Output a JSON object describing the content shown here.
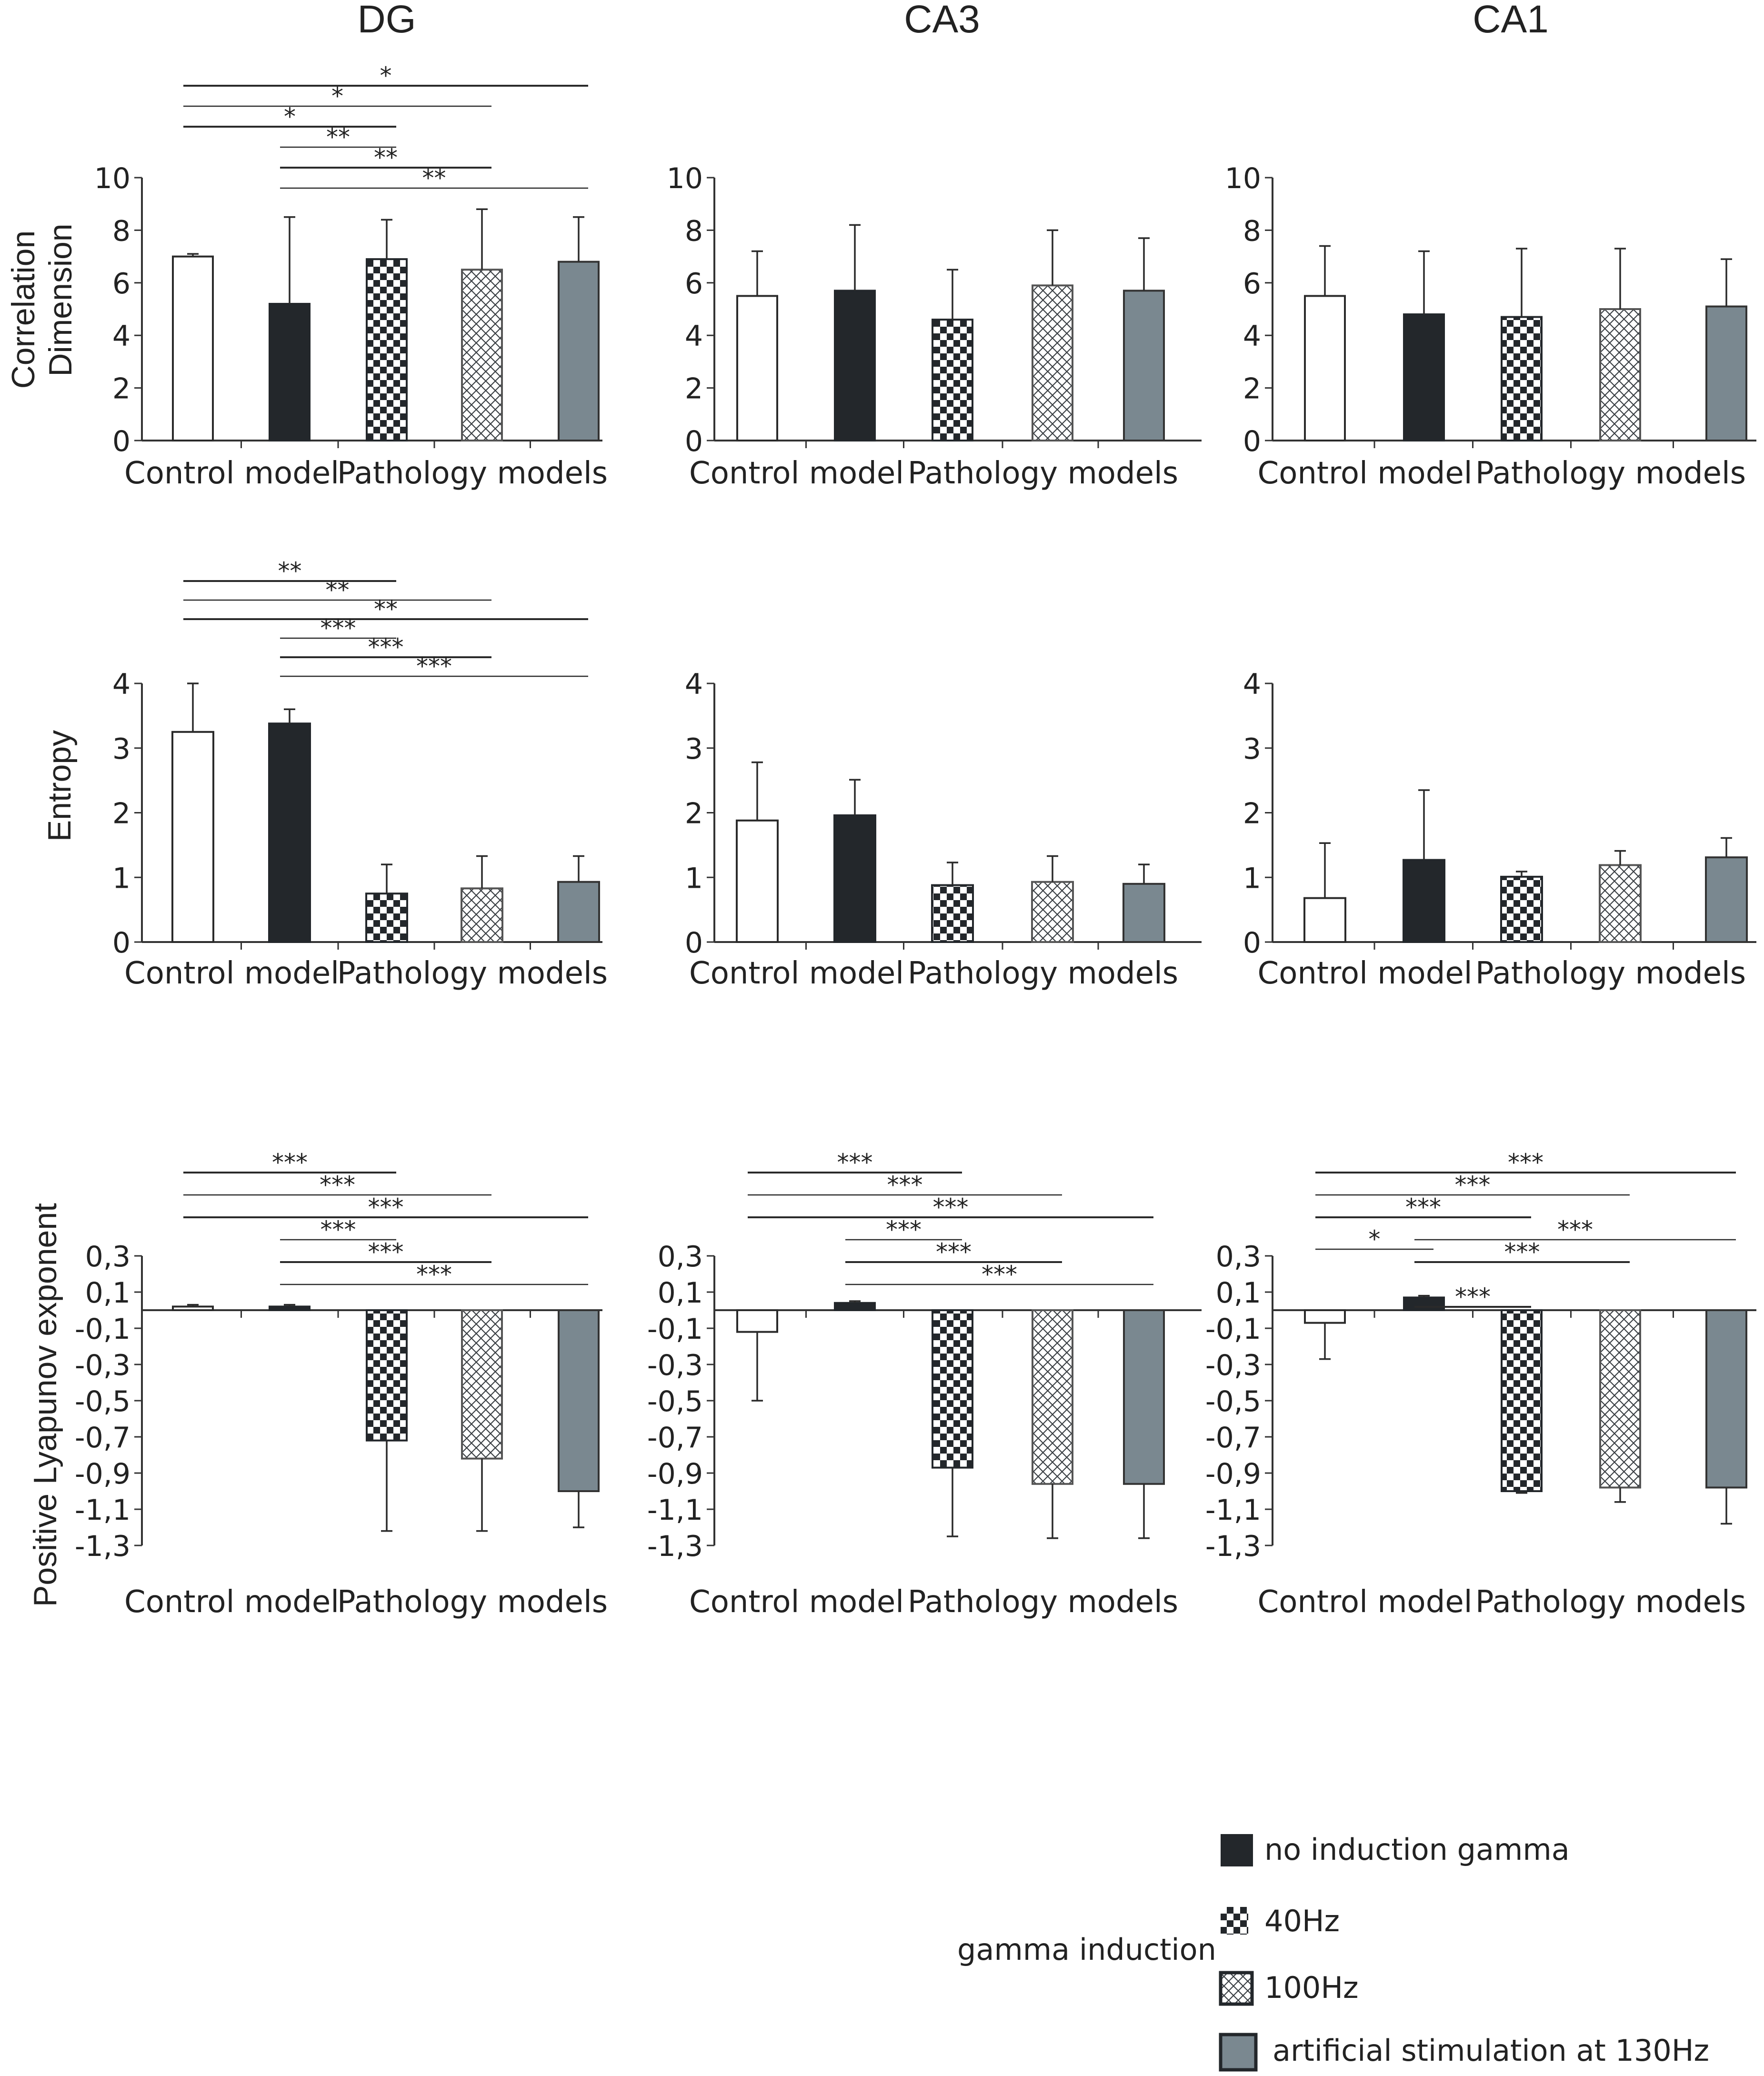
{
  "columns": [
    "DG",
    "CA3",
    "CA1"
  ],
  "group_labels": {
    "control": "Control model",
    "pathology": "Pathology models"
  },
  "row_labels": {
    "cd": [
      "Correlation",
      "Dimension"
    ],
    "ent": [
      "Entropy"
    ],
    "ly": [
      "Positive Lyapunov exponent"
    ]
  },
  "legend": {
    "group_label": "gamma induction",
    "items": [
      {
        "label": "no induction gamma",
        "pattern": "solid-dark"
      },
      {
        "label": "40Hz",
        "pattern": "checker"
      },
      {
        "label": "100Hz",
        "pattern": "crosshatch"
      },
      {
        "label": "artificial stimulation at 130Hz",
        "pattern": "solid-gray"
      }
    ]
  },
  "colors": {
    "dark": "#23272b",
    "gray": "#7a8890",
    "white": "#ffffff",
    "axis": "#333333"
  },
  "chart_data": [
    {
      "type": "bar",
      "title": "DG",
      "ylabel": "Correlation Dimension",
      "ylim": [
        0,
        10
      ],
      "yticks": [
        "0",
        "2",
        "4",
        "6",
        "8",
        "10"
      ],
      "categories": [
        "control",
        "no induction gamma",
        "40Hz",
        "100Hz",
        "artificial stimulation at 130Hz"
      ],
      "values": [
        7.0,
        5.2,
        6.9,
        6.5,
        6.8
      ],
      "errors": [
        0.1,
        3.3,
        1.5,
        2.3,
        1.7
      ],
      "significance": [
        {
          "from": 0,
          "to": 4,
          "label": "*"
        },
        {
          "from": 0,
          "to": 3,
          "label": "*"
        },
        {
          "from": 0,
          "to": 2,
          "label": "*"
        },
        {
          "from": 1,
          "to": 2,
          "label": "**"
        },
        {
          "from": 1,
          "to": 3,
          "label": "**"
        },
        {
          "from": 1,
          "to": 4,
          "label": "**"
        }
      ]
    },
    {
      "type": "bar",
      "title": "CA3",
      "ylabel": "Correlation Dimension",
      "ylim": [
        0,
        10
      ],
      "yticks": [
        "0",
        "2",
        "4",
        "6",
        "8",
        "10"
      ],
      "categories": [
        "control",
        "no induction gamma",
        "40Hz",
        "100Hz",
        "artificial stimulation at 130Hz"
      ],
      "values": [
        5.5,
        5.7,
        4.6,
        5.9,
        5.7
      ],
      "errors": [
        1.7,
        2.5,
        1.9,
        2.1,
        2.0
      ],
      "significance": []
    },
    {
      "type": "bar",
      "title": "CA1",
      "ylabel": "Correlation Dimension",
      "ylim": [
        0,
        10
      ],
      "yticks": [
        "0",
        "2",
        "4",
        "6",
        "8",
        "10"
      ],
      "categories": [
        "control",
        "no induction gamma",
        "40Hz",
        "100Hz",
        "artificial stimulation at 130Hz"
      ],
      "values": [
        5.5,
        4.8,
        4.7,
        5.0,
        5.1
      ],
      "errors": [
        1.9,
        2.4,
        2.6,
        2.3,
        1.8
      ],
      "significance": []
    },
    {
      "type": "bar",
      "title": "DG",
      "ylabel": "Entropy",
      "ylim": [
        0,
        4
      ],
      "yticks": [
        "0",
        "1",
        "2",
        "3",
        "4"
      ],
      "categories": [
        "control",
        "no induction gamma",
        "40Hz",
        "100Hz",
        "artificial stimulation at 130Hz"
      ],
      "values": [
        3.25,
        3.38,
        0.75,
        0.83,
        0.93
      ],
      "errors": [
        0.75,
        0.22,
        0.45,
        0.5,
        0.4
      ],
      "significance": [
        {
          "from": 0,
          "to": 2,
          "label": "**"
        },
        {
          "from": 0,
          "to": 3,
          "label": "**"
        },
        {
          "from": 0,
          "to": 4,
          "label": "**"
        },
        {
          "from": 1,
          "to": 2,
          "label": "***"
        },
        {
          "from": 1,
          "to": 3,
          "label": "***"
        },
        {
          "from": 1,
          "to": 4,
          "label": "***"
        }
      ]
    },
    {
      "type": "bar",
      "title": "CA3",
      "ylabel": "Entropy",
      "ylim": [
        0,
        4
      ],
      "yticks": [
        "0",
        "1",
        "2",
        "3",
        "4"
      ],
      "categories": [
        "control",
        "no induction gamma",
        "40Hz",
        "100Hz",
        "artificial stimulation at 130Hz"
      ],
      "values": [
        1.88,
        1.96,
        0.88,
        0.93,
        0.9
      ],
      "errors": [
        0.9,
        0.55,
        0.35,
        0.4,
        0.3
      ],
      "significance": []
    },
    {
      "type": "bar",
      "title": "CA1",
      "ylabel": "Entropy",
      "ylim": [
        0,
        4
      ],
      "yticks": [
        "0",
        "1",
        "2",
        "3",
        "4"
      ],
      "categories": [
        "control",
        "no induction gamma",
        "40Hz",
        "100Hz",
        "artificial stimulation at 130Hz"
      ],
      "values": [
        0.68,
        1.27,
        1.01,
        1.19,
        1.31
      ],
      "errors": [
        0.85,
        1.08,
        0.08,
        0.22,
        0.3
      ],
      "significance": []
    },
    {
      "type": "bar",
      "title": "DG",
      "ylabel": "Positive Lyapunov exponent",
      "ylim": [
        -1.3,
        0.3
      ],
      "yticks": [
        "0,3",
        "0,1",
        "-0,1",
        "-0,3",
        "-0,5",
        "-0,7",
        "-0,9",
        "-1,1",
        "-1,3"
      ],
      "categories": [
        "control",
        "no induction gamma",
        "40Hz",
        "100Hz",
        "artificial stimulation at 130Hz"
      ],
      "values": [
        0.02,
        0.02,
        -0.72,
        -0.82,
        -1.0
      ],
      "errors": [
        0.01,
        0.01,
        0.5,
        0.4,
        0.2
      ],
      "significance": [
        {
          "from": 0,
          "to": 2,
          "label": "***"
        },
        {
          "from": 0,
          "to": 3,
          "label": "***"
        },
        {
          "from": 0,
          "to": 4,
          "label": "***"
        },
        {
          "from": 1,
          "to": 2,
          "label": "***"
        },
        {
          "from": 1,
          "to": 3,
          "label": "***"
        },
        {
          "from": 1,
          "to": 4,
          "label": "***"
        }
      ]
    },
    {
      "type": "bar",
      "title": "CA3",
      "ylabel": "Positive Lyapunov exponent",
      "ylim": [
        -1.3,
        0.3
      ],
      "yticks": [
        "0,3",
        "0,1",
        "-0,1",
        "-0,3",
        "-0,5",
        "-0,7",
        "-0,9",
        "-1,1",
        "-1,3"
      ],
      "categories": [
        "control",
        "no induction gamma",
        "40Hz",
        "100Hz",
        "artificial stimulation at 130Hz"
      ],
      "values": [
        -0.12,
        0.04,
        -0.87,
        -0.96,
        -0.96
      ],
      "errors": [
        0.38,
        0.01,
        0.38,
        0.3,
        0.3
      ],
      "significance": [
        {
          "from": 0,
          "to": 2,
          "label": "***"
        },
        {
          "from": 0,
          "to": 3,
          "label": "***"
        },
        {
          "from": 0,
          "to": 4,
          "label": "***"
        },
        {
          "from": 1,
          "to": 2,
          "label": "***"
        },
        {
          "from": 1,
          "to": 3,
          "label": "***"
        },
        {
          "from": 1,
          "to": 4,
          "label": "***"
        }
      ]
    },
    {
      "type": "bar",
      "title": "CA1",
      "ylabel": "Positive Lyapunov exponent",
      "ylim": [
        -1.3,
        0.3
      ],
      "yticks": [
        "0,3",
        "0,1",
        "-0,1",
        "-0,3",
        "-0,5",
        "-0,7",
        "-0,9",
        "-1,1",
        "-1,3"
      ],
      "categories": [
        "control",
        "no induction gamma",
        "40Hz",
        "100Hz",
        "artificial stimulation at 130Hz"
      ],
      "values": [
        -0.07,
        0.07,
        -1.0,
        -0.98,
        -0.98
      ],
      "errors": [
        0.2,
        0.01,
        0.01,
        0.08,
        0.2
      ],
      "significance": [
        {
          "from": 0,
          "to": 4,
          "label": "***"
        },
        {
          "from": 0,
          "to": 3,
          "label": "***"
        },
        {
          "from": 0,
          "to": 2,
          "label": "***"
        },
        {
          "from": 1,
          "to": 4,
          "label": "***"
        },
        {
          "from": 1,
          "to": 3,
          "label": "***"
        },
        {
          "from": 0,
          "to": 1,
          "label": "*"
        },
        {
          "from": 1,
          "to": 2,
          "label": "***"
        }
      ]
    }
  ]
}
